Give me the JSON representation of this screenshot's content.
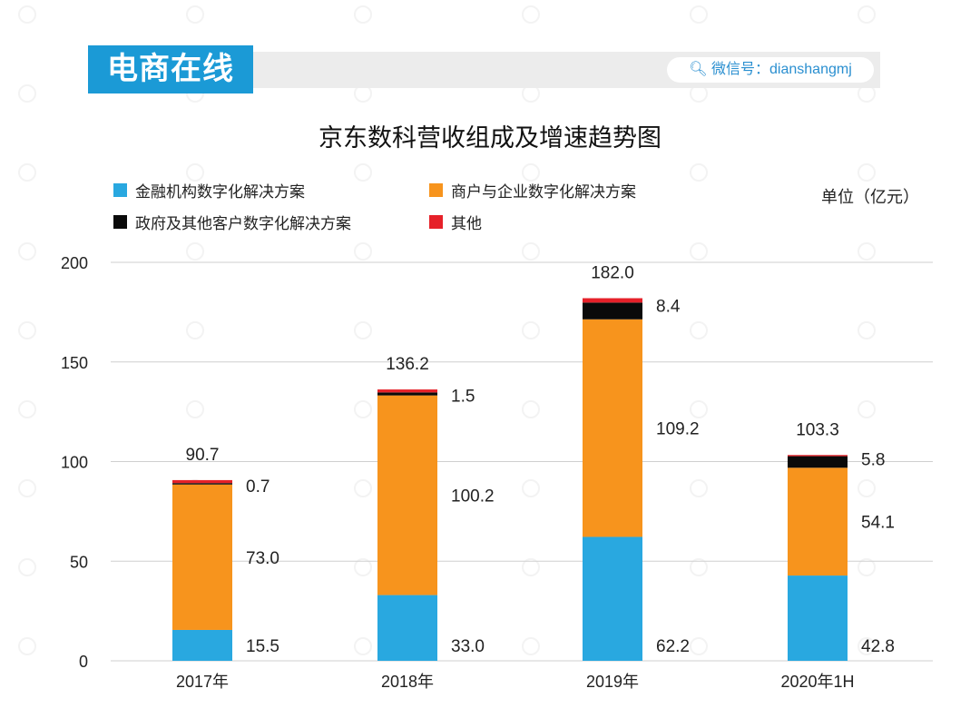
{
  "header": {
    "brand": "电商在线",
    "wechat": "微信号：dianshangmj",
    "search_icon": "search-icon"
  },
  "watermark": "电商在线",
  "colors": {
    "finance": "#29a8e0",
    "merchant": "#f7941d",
    "gov": "#0a0a0a",
    "other": "#e62129",
    "brand": "#1b9ad6"
  },
  "chart_data": {
    "type": "bar",
    "stacked": true,
    "title": "京东数科营收组成及增速趋势图",
    "unit": "单位（亿元）",
    "categories": [
      "2017年",
      "2018年",
      "2019年",
      "2020年1H"
    ],
    "series": [
      {
        "name": "金融机构数字化解决方案",
        "values": [
          15.5,
          33.0,
          62.2,
          42.8
        ]
      },
      {
        "name": "商户与企业数字化解决方案",
        "values": [
          73.0,
          100.2,
          109.2,
          54.1
        ]
      },
      {
        "name": "政府及其他客户数字化解决方案",
        "values": [
          0.7,
          1.5,
          8.4,
          5.8
        ]
      },
      {
        "name": "其他",
        "values": [
          1.5,
          1.5,
          2.2,
          0.6
        ]
      }
    ],
    "totals": [
      90.7,
      136.2,
      182.0,
      103.3
    ],
    "labels": {
      "finance": [
        "15.5",
        "33.0",
        "62.2",
        "42.8"
      ],
      "merchant": [
        "73.0",
        "100.2",
        "109.2",
        "54.1"
      ],
      "gov": [
        "0.7",
        "1.5",
        "8.4",
        "5.8"
      ],
      "totals": [
        "90.7",
        "136.2",
        "182.0",
        "103.3"
      ]
    },
    "yticks": [
      "0",
      "50",
      "100",
      "150",
      "200"
    ],
    "ylim": [
      0,
      200
    ],
    "grid": true,
    "legend_position": "top-left"
  }
}
